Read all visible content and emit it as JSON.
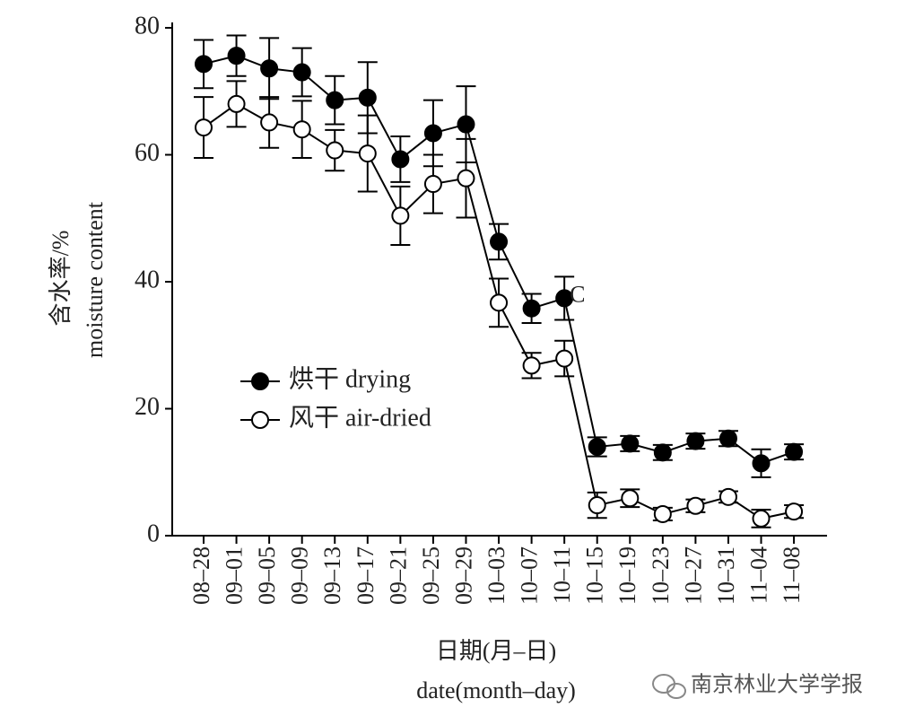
{
  "chart_data": {
    "type": "line",
    "categories": [
      "08–28",
      "09–01",
      "09–05",
      "09–09",
      "09–13",
      "09–17",
      "09–21",
      "09–25",
      "09–29",
      "10–03",
      "10–07",
      "10–11",
      "10–15",
      "10–19",
      "10–23",
      "10–27",
      "10–31",
      "11–04",
      "11–08"
    ],
    "series": [
      {
        "name": "烘干 drying",
        "color": "#000000",
        "values": [
          74.3,
          75.6,
          73.6,
          73.0,
          68.6,
          69.0,
          59.3,
          63.4,
          64.8,
          46.3,
          35.8,
          37.4,
          14.0,
          14.5,
          13.1,
          14.9,
          15.3,
          11.4,
          13.2
        ],
        "errors": [
          3.8,
          3.2,
          4.8,
          3.8,
          3.8,
          5.6,
          3.6,
          5.2,
          6.0,
          2.8,
          2.3,
          3.4,
          1.5,
          1.2,
          1.2,
          1.2,
          1.2,
          2.2,
          1.2
        ]
      },
      {
        "name": "风干 air-dried",
        "color": "#ffffff",
        "values": [
          64.3,
          68.0,
          65.1,
          64.0,
          60.7,
          60.2,
          50.4,
          55.4,
          56.3,
          36.7,
          26.8,
          27.9,
          4.8,
          5.9,
          3.4,
          4.7,
          6.1,
          2.7,
          3.8
        ],
        "errors": [
          4.8,
          3.6,
          4.0,
          4.5,
          3.2,
          6.0,
          4.6,
          4.6,
          6.2,
          3.8,
          2.0,
          2.8,
          2.0,
          1.4,
          1.0,
          1.0,
          0.9,
          1.4,
          1.0
        ]
      }
    ],
    "ylim": [
      0,
      80
    ],
    "yticks": [
      0,
      20,
      40,
      60,
      80
    ],
    "y_label": [
      "含水率/%",
      "moisture content"
    ],
    "x_label": [
      "日期(月–日)",
      "date(month–day)"
    ],
    "annotation": "C",
    "legend": "center left",
    "watermark": "南京林业大学学报"
  }
}
